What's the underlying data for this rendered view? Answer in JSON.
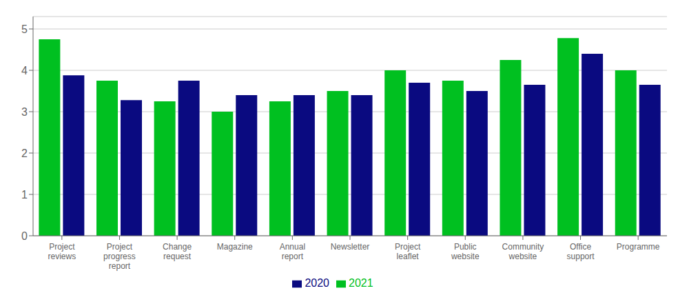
{
  "chart_data": {
    "type": "bar",
    "categories": [
      "Project\nreviews",
      "Project\nprogress\nreport",
      "Change\nrequest",
      "Magazine",
      "Annual\nreport",
      "Newsletter",
      "Project\nleaflet",
      "Public\nwebsite",
      "Community\nwebsite",
      "Office\nsupport",
      "Programme"
    ],
    "series": [
      {
        "name": "2021",
        "color": "#00C020",
        "values": [
          4.75,
          3.75,
          3.25,
          3.0,
          3.25,
          3.5,
          4.0,
          3.75,
          4.25,
          4.78,
          4.0
        ]
      },
      {
        "name": "2020",
        "color": "#0A0A80",
        "values": [
          3.88,
          3.28,
          3.75,
          3.4,
          3.4,
          3.4,
          3.7,
          3.5,
          3.65,
          4.4,
          3.65
        ]
      }
    ],
    "ylim": [
      0,
      5.3
    ],
    "yticks": [
      0,
      1,
      2,
      3,
      4,
      5
    ],
    "grid": true,
    "legend": "bottom"
  }
}
